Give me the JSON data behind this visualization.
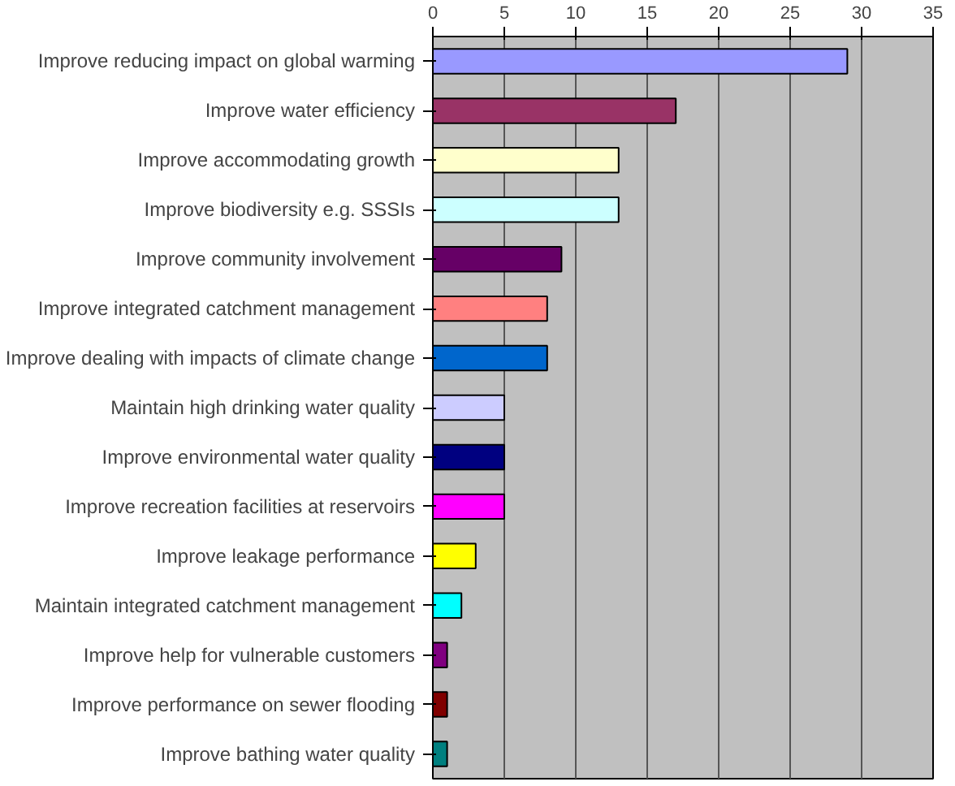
{
  "chart_data": {
    "type": "bar",
    "orientation": "horizontal",
    "categories": [
      "Improve reducing impact on global warming",
      "Improve water efficiency",
      "Improve accommodating growth",
      "Improve biodiversity e.g. SSSIs",
      "Improve community involvement",
      "Improve integrated catchment management",
      "Improve dealing with impacts of climate change",
      "Maintain high drinking water quality",
      "Improve environmental water quality",
      "Improve recreation facilities at reservoirs",
      "Improve leakage performance",
      "Maintain integrated catchment management",
      "Improve help for vulnerable customers",
      "Improve performance on sewer flooding",
      "Improve bathing water quality"
    ],
    "values": [
      29,
      17,
      13,
      13,
      9,
      8,
      8,
      5,
      5,
      5,
      3,
      2,
      1,
      1,
      1
    ],
    "colors": [
      "#9999ff",
      "#993366",
      "#ffffcc",
      "#ccffff",
      "#660066",
      "#ff8080",
      "#0066cc",
      "#ccccff",
      "#000080",
      "#ff00ff",
      "#ffff00",
      "#00ffff",
      "#800080",
      "#800000",
      "#008080"
    ],
    "xlim": [
      0,
      35
    ],
    "xticks": [
      0,
      5,
      10,
      15,
      20,
      25,
      30,
      35
    ],
    "grid": "x"
  }
}
